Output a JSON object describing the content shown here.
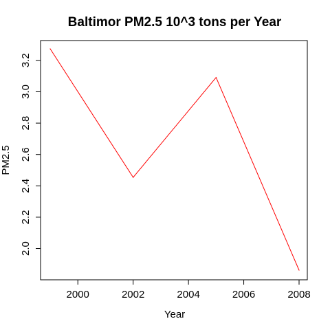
{
  "chart_data": {
    "type": "line",
    "title": "Baltimor PM2.5 10^3 tons per Year",
    "xlabel": "Year",
    "ylabel": "PM2.5",
    "x": [
      1999,
      2002,
      2005,
      2008
    ],
    "series": [
      {
        "values": [
          3.274,
          2.454,
          3.091,
          1.862
        ],
        "color": "#ff0000"
      }
    ],
    "xlim": [
      1999,
      2008
    ],
    "ylim": [
      1.862,
      3.274
    ],
    "xticks": [
      2000,
      2002,
      2004,
      2006,
      2008
    ],
    "xtick_labels": [
      "2000",
      "2002",
      "2004",
      "2006",
      "2008"
    ],
    "yticks": [
      2.0,
      2.2,
      2.4,
      2.6,
      2.8,
      3.0,
      3.2
    ],
    "ytick_labels": [
      "2.0",
      "2.2",
      "2.4",
      "2.6",
      "2.8",
      "3.0",
      "3.2"
    ],
    "grid": false,
    "legend": false
  }
}
